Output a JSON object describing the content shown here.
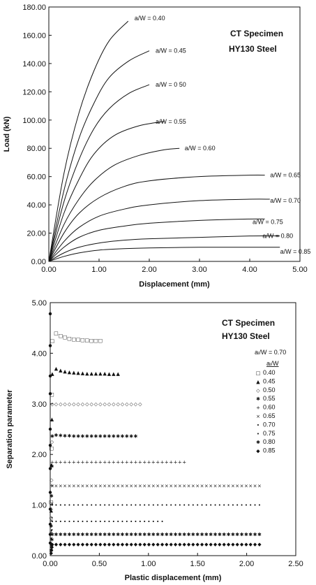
{
  "chart_data": [
    {
      "type": "line",
      "title": "CT Specimen",
      "subtitle": "HY130 Steel",
      "xlabel": "Displacement (mm)",
      "ylabel": "Load (kN)",
      "xlim": [
        0,
        5
      ],
      "ylim": [
        0,
        180
      ],
      "x_ticks": [
        "0.00",
        "1.00",
        "2.00",
        "3.00",
        "4.00",
        "5.00"
      ],
      "y_ticks": [
        "0.00",
        "20.00",
        "40.00",
        "60.00",
        "80.00",
        "100.00",
        "120.00",
        "140.00",
        "160.00",
        "180.00"
      ],
      "grid": false,
      "series": [
        {
          "name": "a/W = 0.40",
          "values": [
            [
              0,
              0
            ],
            [
              0.3,
              62
            ],
            [
              0.6,
              105
            ],
            [
              0.9,
              135
            ],
            [
              1.2,
              156
            ],
            [
              1.58,
              170
            ]
          ]
        },
        {
          "name": "a/W = 0.45",
          "values": [
            [
              0,
              0
            ],
            [
              0.3,
              50
            ],
            [
              0.6,
              87
            ],
            [
              0.9,
              112
            ],
            [
              1.2,
              130
            ],
            [
              1.6,
              142
            ],
            [
              2.0,
              149
            ]
          ]
        },
        {
          "name": "a/W = 0.50",
          "values": [
            [
              0,
              0
            ],
            [
              0.3,
              42
            ],
            [
              0.6,
              72
            ],
            [
              0.9,
              94
            ],
            [
              1.2,
              108
            ],
            [
              1.6,
              119
            ],
            [
              2.0,
              125
            ]
          ]
        },
        {
          "name": "a/W = 0.55",
          "values": [
            [
              0,
              0
            ],
            [
              0.3,
              34
            ],
            [
              0.6,
              58
            ],
            [
              0.9,
              76
            ],
            [
              1.3,
              89
            ],
            [
              1.8,
              96
            ],
            [
              2.3,
              99
            ]
          ]
        },
        {
          "name": "a/W = 0.60",
          "values": [
            [
              0,
              0
            ],
            [
              0.3,
              26
            ],
            [
              0.6,
              44
            ],
            [
              0.9,
              57
            ],
            [
              1.3,
              68
            ],
            [
              1.8,
              75
            ],
            [
              2.3,
              79
            ],
            [
              2.6,
              80
            ]
          ]
        },
        {
          "name": "a/W = 0.65",
          "values": [
            [
              0,
              0
            ],
            [
              0.3,
              20
            ],
            [
              0.6,
              34
            ],
            [
              1.0,
              45
            ],
            [
              1.5,
              53
            ],
            [
              2.0,
              57
            ],
            [
              3.0,
              60
            ],
            [
              4.0,
              61
            ],
            [
              4.3,
              61
            ]
          ]
        },
        {
          "name": "a/W = 0.70",
          "values": [
            [
              0,
              0
            ],
            [
              0.3,
              14
            ],
            [
              0.6,
              24
            ],
            [
              1.0,
              32
            ],
            [
              1.5,
              37
            ],
            [
              2.0,
              40
            ],
            [
              3.0,
              43
            ],
            [
              4.0,
              44
            ],
            [
              4.4,
              44
            ]
          ]
        },
        {
          "name": "a/W = 0.75",
          "values": [
            [
              0,
              0
            ],
            [
              0.3,
              10
            ],
            [
              0.6,
              17
            ],
            [
              1.0,
              22
            ],
            [
              1.5,
              25
            ],
            [
              2.0,
              27
            ],
            [
              3.0,
              29
            ],
            [
              4.0,
              30
            ],
            [
              4.3,
              30
            ]
          ]
        },
        {
          "name": "a/W = 0.80",
          "values": [
            [
              0,
              0
            ],
            [
              0.3,
              6
            ],
            [
              0.6,
              10
            ],
            [
              1.0,
              13
            ],
            [
              1.5,
              15
            ],
            [
              2.0,
              16
            ],
            [
              3.0,
              17
            ],
            [
              4.0,
              18
            ],
            [
              4.6,
              18
            ]
          ]
        },
        {
          "name": "a/W = 0.85",
          "values": [
            [
              0,
              0
            ],
            [
              0.3,
              3.5
            ],
            [
              0.6,
              6
            ],
            [
              1.0,
              8
            ],
            [
              1.5,
              9
            ],
            [
              2.0,
              9.5
            ],
            [
              3.0,
              10
            ],
            [
              4.0,
              10
            ],
            [
              4.6,
              10
            ]
          ]
        }
      ],
      "labels": [
        {
          "text": "a/W = 0.40",
          "x": 1.65,
          "y": 172
        },
        {
          "text": "a/W = 0.45",
          "x": 2.07,
          "y": 149
        },
        {
          "text": "a/W = 0 50",
          "x": 2.07,
          "y": 125
        },
        {
          "text": "a/W = 0.55",
          "x": 2.07,
          "y": 99
        },
        {
          "text": "a/W = 0.60",
          "x": 2.65,
          "y": 80
        },
        {
          "text": "a/W = 0.65",
          "x": 4.35,
          "y": 61
        },
        {
          "text": "a/W = 0.70",
          "x": 4.35,
          "y": 43
        },
        {
          "text": "a/W = 0.75",
          "x": 4.0,
          "y": 28
        },
        {
          "text": "a/W = 0.80",
          "x": 4.2,
          "y": 18
        },
        {
          "text": "a/W = 0.85",
          "x": 4.55,
          "y": 7
        }
      ]
    },
    {
      "type": "scatter",
      "title": "CT Specimen",
      "subtitle": "HY130 Steel",
      "note": "aₗ/W = 0.70",
      "legend_title": "aₗ/W",
      "legend_placement": "right",
      "xlabel": "Plastic displacement (mm)",
      "ylabel": "Separation parameter",
      "xlim": [
        0,
        2.5
      ],
      "ylim": [
        0,
        5
      ],
      "x_ticks": [
        "0.00",
        "0.50",
        "1.00",
        "1.50",
        "2.00",
        "2.50"
      ],
      "y_ticks": [
        "0.00",
        "1.00",
        "2.00",
        "3.00",
        "4.00",
        "5.00"
      ],
      "grid": false,
      "series": [
        {
          "name": "0.40",
          "marker": "□",
          "x_end": 0.52,
          "plateau": 4.25,
          "peak": 4.4
        },
        {
          "name": "0.45",
          "marker": "▲",
          "x_end": 0.72,
          "plateau": 3.6,
          "peak": 3.7
        },
        {
          "name": "0.50",
          "marker": "◇",
          "x_end": 0.92,
          "plateau": 3.0,
          "peak": 3.0
        },
        {
          "name": "0.55",
          "marker": "✱",
          "x_end": 0.88,
          "plateau": 2.36,
          "peak": 2.38
        },
        {
          "name": "0.60",
          "marker": "+",
          "x_end": 1.4,
          "plateau": 1.85,
          "peak": 1.85
        },
        {
          "name": "0.65",
          "marker": "×",
          "x_end": 2.17,
          "plateau": 1.38,
          "peak": 1.38
        },
        {
          "name": "0.70",
          "marker": "•",
          "x_end": 2.17,
          "plateau": 1.0,
          "peak": 1.0
        },
        {
          "name": "0.75",
          "marker": "•",
          "x_end": 1.15,
          "plateau": 0.68,
          "peak": 0.68
        },
        {
          "name": "0.80",
          "marker": "✱",
          "x_end": 2.17,
          "plateau": 0.42,
          "peak": 0.42
        },
        {
          "name": "0.85",
          "marker": "◆",
          "x_end": 2.17,
          "plateau": 0.23,
          "peak": 0.23
        }
      ]
    }
  ]
}
